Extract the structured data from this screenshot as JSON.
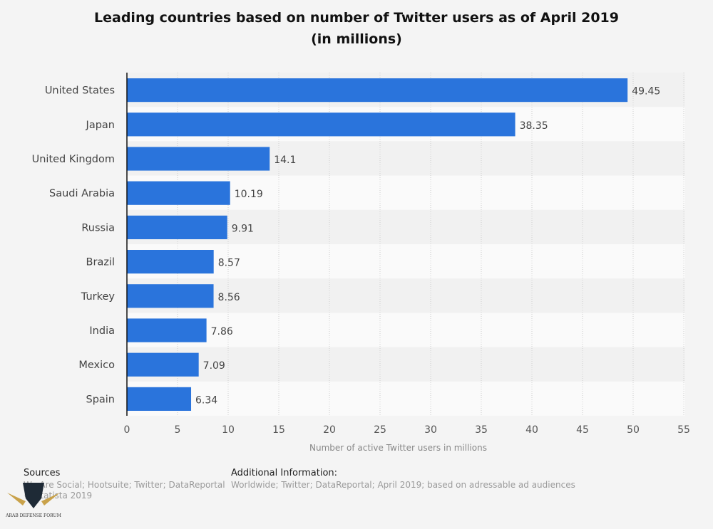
{
  "chart_data": {
    "type": "bar",
    "orientation": "horizontal",
    "title": "Leading countries based on number of Twitter users as of April 2019",
    "subtitle": "(in millions)",
    "categories": [
      "United States",
      "Japan",
      "United Kingdom",
      "Saudi Arabia",
      "Russia",
      "Brazil",
      "Turkey",
      "India",
      "Mexico",
      "Spain"
    ],
    "values": [
      49.45,
      38.35,
      14.1,
      10.19,
      9.91,
      8.57,
      8.56,
      7.86,
      7.09,
      6.34
    ],
    "value_labels": [
      "49.45",
      "38.35",
      "14.1",
      "10.19",
      "9.91",
      "8.57",
      "8.56",
      "7.86",
      "7.09",
      "6.34"
    ],
    "xlabel": "Number of active Twitter users in millions",
    "ylabel": "",
    "xlim": [
      0,
      55
    ],
    "xticks": [
      "0",
      "5",
      "10",
      "15",
      "20",
      "25",
      "30",
      "35",
      "40",
      "45",
      "50",
      "55"
    ],
    "grid": true,
    "bar_color": "#2a74dc"
  },
  "footer": {
    "sources_label": "Sources",
    "sources_text": "We Are Social; Hootsuite; Twitter; DataReportal",
    "sources_text2": "© Statista 2019",
    "additional_label": "Additional Information:",
    "additional_text": "Worldwide; Twitter; DataReportal; April 2019; based on adressable ad audiences"
  },
  "watermark": "ARAB DEFENSE FORUM"
}
